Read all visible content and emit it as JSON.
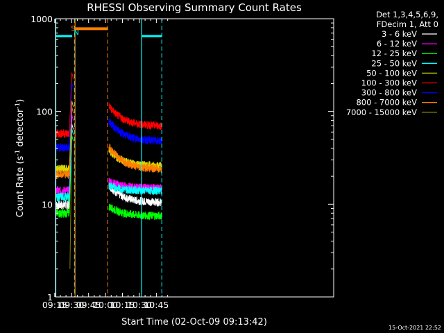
{
  "chart_data": {
    "type": "line",
    "title": "RHESSI Observing Summary Count Rates",
    "xlabel": "Start Time (02-Oct-09 09:13:42)",
    "ylabel_main": "Count Rate (s",
    "ylabel_sup1": "-1",
    "ylabel_mid": " detector",
    "ylabel_sup2": "-1",
    "ylabel_end": ")",
    "y_scale": "log",
    "ylim": [
      1,
      1000
    ],
    "xlim_min": [
      555.7,
      802
    ],
    "x_ticks": [
      {
        "min": 555,
        "label": "09:15"
      },
      {
        "min": 570,
        "label": "09:30"
      },
      {
        "min": 585,
        "label": "09:45"
      },
      {
        "min": 600,
        "label": "10:00"
      },
      {
        "min": 615,
        "label": "10:15"
      },
      {
        "min": 630,
        "label": "10:30"
      },
      {
        "min": 645,
        "label": "10:45"
      }
    ],
    "y_ticks": [
      {
        "value": 1,
        "label": "1"
      },
      {
        "value": 10,
        "label": "10"
      },
      {
        "value": 100,
        "label": "100"
      },
      {
        "value": 1000,
        "label": "1000"
      }
    ],
    "legend_header": [
      "Det 1,3,4,5,6,9,",
      "FDecim 1, Att 0"
    ],
    "series": [
      {
        "name": "3 - 6 keV",
        "color": "#ffffff",
        "pre": 9.8,
        "post_start": 16,
        "post_end": 10.5,
        "peak": 80
      },
      {
        "name": "6 - 12 keV",
        "color": "#ff00ff",
        "pre": 14,
        "post_start": 18,
        "post_end": 15,
        "peak": 100
      },
      {
        "name": "12 - 25 keV",
        "color": "#00ff00",
        "pre": 8,
        "post_start": 9.5,
        "post_end": 7.5,
        "peak": 60
      },
      {
        "name": "25 - 50 keV",
        "color": "#00ffff",
        "pre": 12,
        "post_start": 16,
        "post_end": 14,
        "peak": 70
      },
      {
        "name": "50 - 100 keV",
        "color": "#d8d800",
        "pre": 24,
        "post_start": 38,
        "post_end": 26,
        "peak": 140
      },
      {
        "name": "100 - 300 keV",
        "color": "#ff0000",
        "pre": 58,
        "post_start": 115,
        "post_end": 70,
        "peak": 280
      },
      {
        "name": "300 - 800 keV",
        "color": "#0000ff",
        "pre": 41,
        "post_start": 80,
        "post_end": 48,
        "peak": 220
      },
      {
        "name": "800 - 7000 keV",
        "color": "#ff7f00",
        "pre": 21,
        "post_start": 42,
        "post_end": 24,
        "peak": 120
      },
      {
        "name": "7000 - 15000 keV",
        "color": "#808000",
        "pre": null,
        "post_start": null,
        "post_end": null,
        "peak": 30
      }
    ],
    "flags": {
      "S_label": "S",
      "N_label": "N",
      "saa_bar_value": 780,
      "night_bar_value": 650
    },
    "timestamp": "15-Oct-2021 22:52"
  }
}
